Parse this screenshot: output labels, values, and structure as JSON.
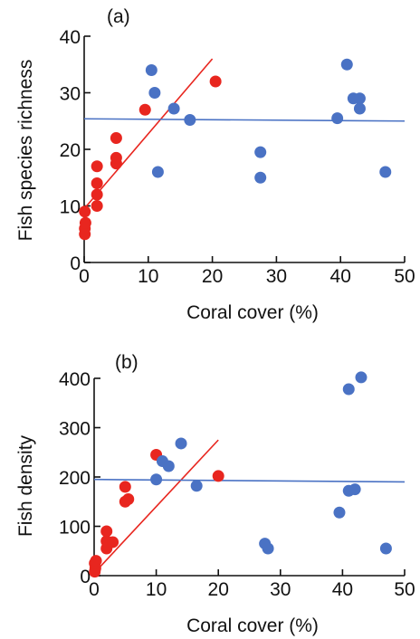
{
  "colors": {
    "red_series": "#e8261f",
    "blue_series": "#4a72c4",
    "axis": "#111111"
  },
  "chart_data": [
    {
      "type": "scatter",
      "panel_label": "(a)",
      "xlabel": "Coral cover (%)",
      "ylabel": "Fish species richness",
      "xlim": [
        0,
        50
      ],
      "ylim": [
        0,
        40
      ],
      "xticks": [
        "0",
        "10",
        "20",
        "30",
        "40",
        "50"
      ],
      "yticks": [
        "0",
        "10",
        "20",
        "30",
        "40"
      ],
      "xtick_values": [
        0,
        10,
        20,
        30,
        40,
        50
      ],
      "ytick_values": [
        0,
        10,
        20,
        30,
        40
      ],
      "grid": false,
      "series": [
        {
          "color": "#e8261f",
          "points": [
            [
              0.1,
              5
            ],
            [
              0.1,
              6
            ],
            [
              0.2,
              7
            ],
            [
              0.1,
              9
            ],
            [
              2,
              10
            ],
            [
              2,
              12
            ],
            [
              2,
              14
            ],
            [
              2,
              17
            ],
            [
              5,
              17.5
            ],
            [
              5,
              18.5
            ],
            [
              5,
              22
            ],
            [
              9.5,
              27
            ],
            [
              20.5,
              32
            ]
          ],
          "trend": [
            [
              0,
              9.5
            ],
            [
              20,
              36
            ]
          ]
        },
        {
          "color": "#4a72c4",
          "points": [
            [
              10.5,
              34
            ],
            [
              11,
              30
            ],
            [
              11.5,
              16
            ],
            [
              14,
              27.2
            ],
            [
              16.5,
              25.2
            ],
            [
              27.5,
              19.5
            ],
            [
              27.5,
              15
            ],
            [
              39.5,
              25.5
            ],
            [
              41,
              35
            ],
            [
              42,
              29
            ],
            [
              43,
              29
            ],
            [
              43,
              27.2
            ],
            [
              47,
              16
            ]
          ],
          "trend": [
            [
              0,
              25.4
            ],
            [
              50,
              25.0
            ]
          ]
        }
      ]
    },
    {
      "type": "scatter",
      "panel_label": "(b)",
      "xlabel": "Coral cover (%)",
      "ylabel": "Fish density",
      "xlim": [
        0,
        50
      ],
      "ylim": [
        0,
        400
      ],
      "xticks": [
        "0",
        "10",
        "20",
        "30",
        "40",
        "50"
      ],
      "yticks": [
        "0",
        "100",
        "200",
        "300",
        "400"
      ],
      "xtick_values": [
        0,
        10,
        20,
        30,
        40,
        50
      ],
      "ytick_values": [
        0,
        100,
        200,
        300,
        400
      ],
      "grid": false,
      "series": [
        {
          "color": "#e8261f",
          "points": [
            [
              0.1,
              8
            ],
            [
              0.2,
              15
            ],
            [
              0.1,
              25
            ],
            [
              0.3,
              30
            ],
            [
              2,
              55
            ],
            [
              2,
              70
            ],
            [
              3,
              68
            ],
            [
              2,
              90
            ],
            [
              5,
              150
            ],
            [
              5.5,
              155
            ],
            [
              5,
              180
            ],
            [
              10,
              245
            ],
            [
              20,
              202
            ]
          ],
          "trend": [
            [
              0,
              5
            ],
            [
              20,
              275
            ]
          ]
        },
        {
          "color": "#4a72c4",
          "points": [
            [
              10,
              195
            ],
            [
              11,
              232
            ],
            [
              12,
              222
            ],
            [
              14,
              268
            ],
            [
              16.5,
              182
            ],
            [
              27.5,
              65
            ],
            [
              28,
              55
            ],
            [
              39.5,
              128
            ],
            [
              41,
              378
            ],
            [
              41,
              172
            ],
            [
              42,
              175
            ],
            [
              43,
              402
            ],
            [
              47,
              55
            ]
          ],
          "trend": [
            [
              0,
              195
            ],
            [
              50,
              190
            ]
          ]
        }
      ]
    }
  ]
}
